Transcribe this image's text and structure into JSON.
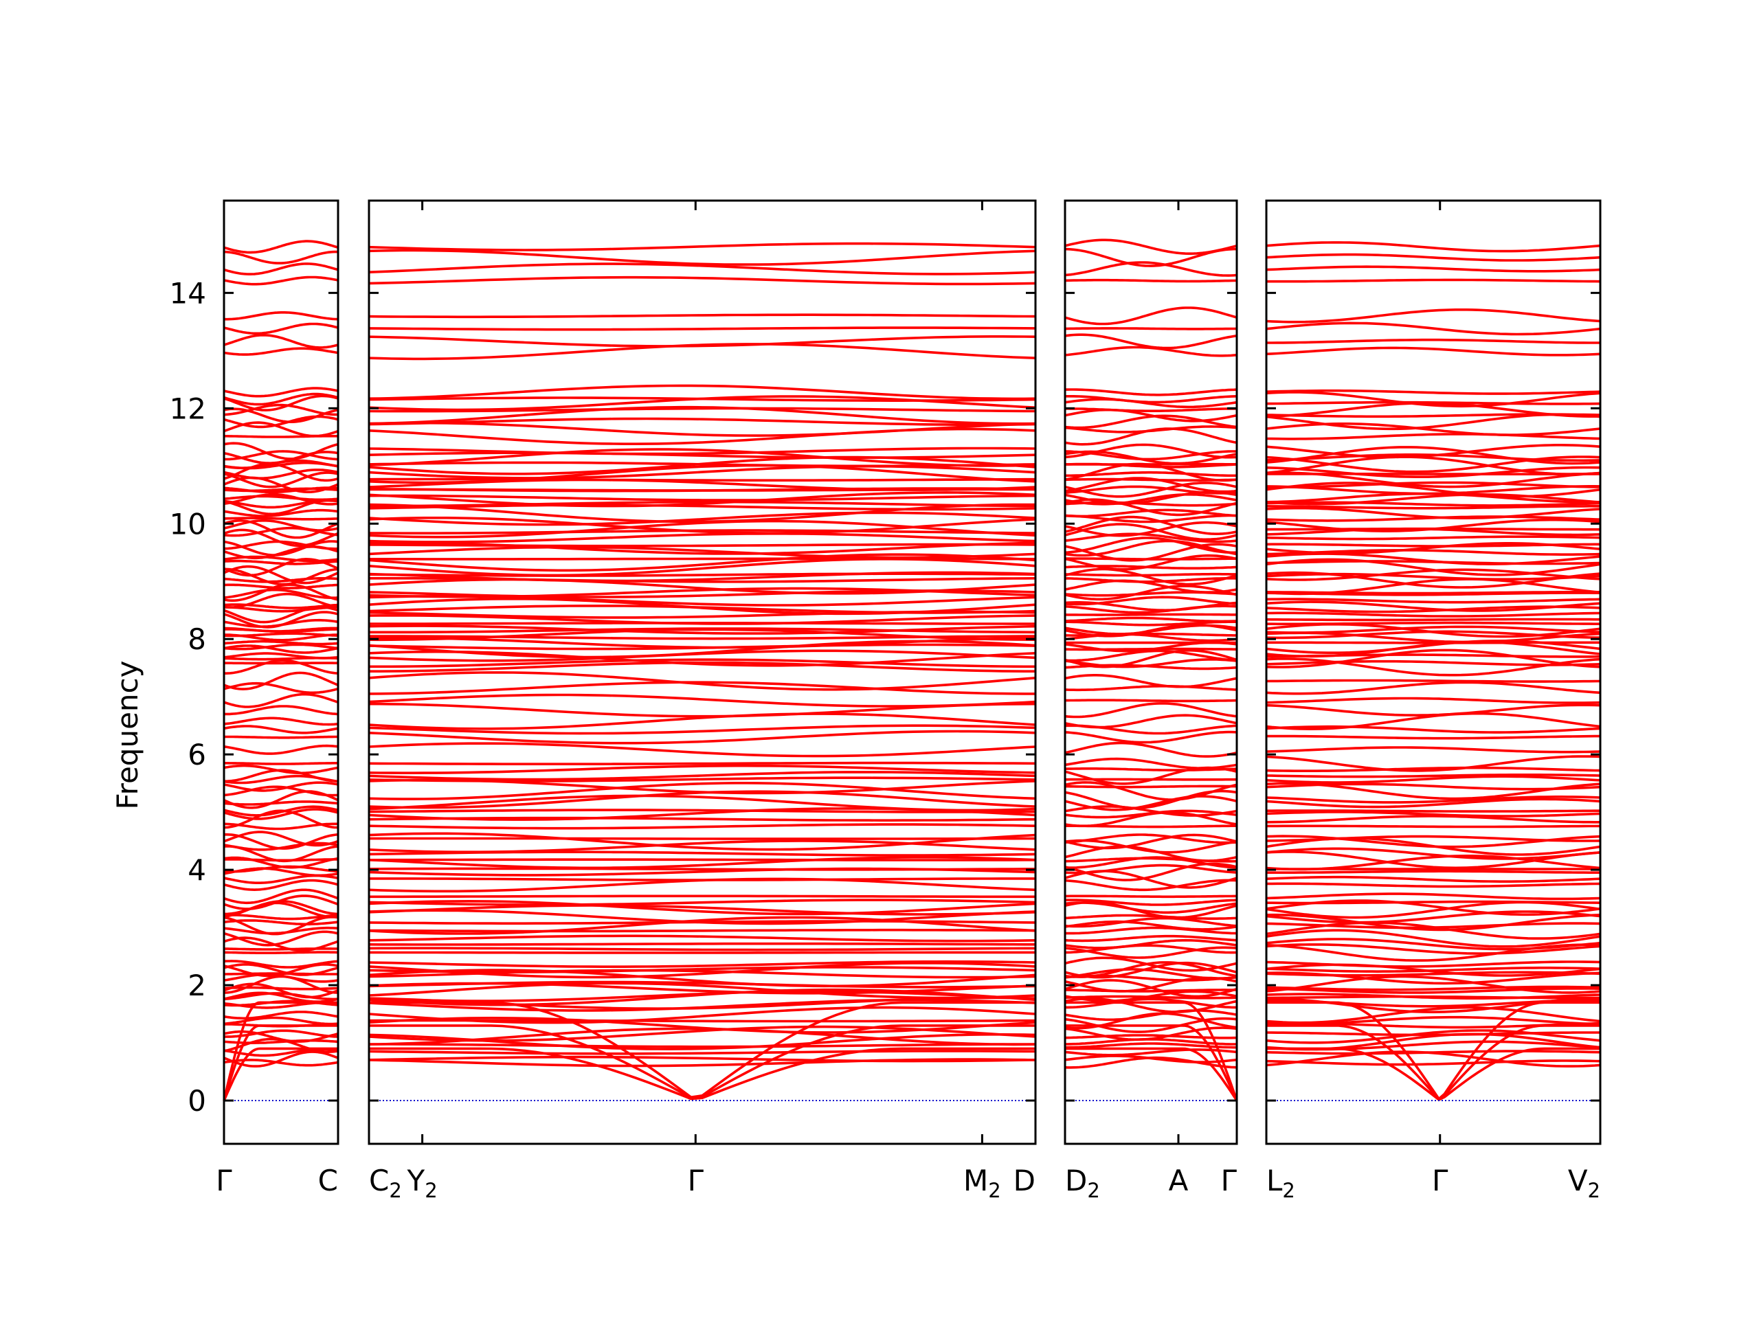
{
  "chart_data": {
    "type": "line",
    "title": "",
    "ylabel": "Frequency",
    "ylim": [
      -0.75,
      15.6
    ],
    "y_ticks": [
      0,
      2,
      4,
      6,
      8,
      10,
      12,
      14
    ],
    "grid": false,
    "legend": "none",
    "line_color": "#ff0000",
    "zero_line_color": "#0000cc",
    "band_count": 120,
    "panels": [
      {
        "id": "panel-1",
        "x_labels": [
          {
            "x": 0.0,
            "text": "Γ",
            "sub": ""
          },
          {
            "x": 1.0,
            "text": "C",
            "sub": ""
          }
        ]
      },
      {
        "id": "panel-2",
        "x_labels": [
          {
            "x": 0.0,
            "text": "C",
            "sub": "2"
          },
          {
            "x": 0.08,
            "text": "Y",
            "sub": "2"
          },
          {
            "x": 0.49,
            "text": "Γ",
            "sub": ""
          },
          {
            "x": 0.92,
            "text": "M",
            "sub": "2"
          },
          {
            "x": 1.0,
            "text": "D",
            "sub": ""
          }
        ]
      },
      {
        "id": "panel-3",
        "x_labels": [
          {
            "x": 0.0,
            "text": "D",
            "sub": "2"
          },
          {
            "x": 0.66,
            "text": "A",
            "sub": ""
          },
          {
            "x": 1.0,
            "text": "Γ",
            "sub": ""
          }
        ]
      },
      {
        "id": "panel-4",
        "x_labels": [
          {
            "x": 0.0,
            "text": "L",
            "sub": "2"
          },
          {
            "x": 0.52,
            "text": "Γ",
            "sub": ""
          },
          {
            "x": 1.0,
            "text": "V",
            "sub": "2"
          }
        ]
      }
    ]
  }
}
